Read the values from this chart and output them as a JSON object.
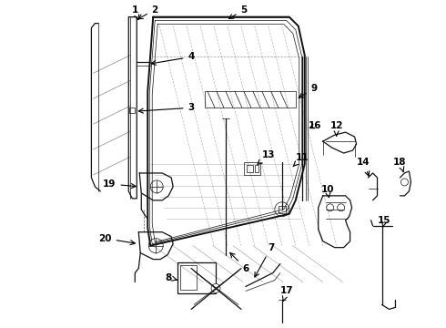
{
  "bg_color": "#ffffff",
  "line_color": "#111111",
  "text_color": "#000000",
  "fig_width": 4.9,
  "fig_height": 3.6,
  "dpi": 100
}
